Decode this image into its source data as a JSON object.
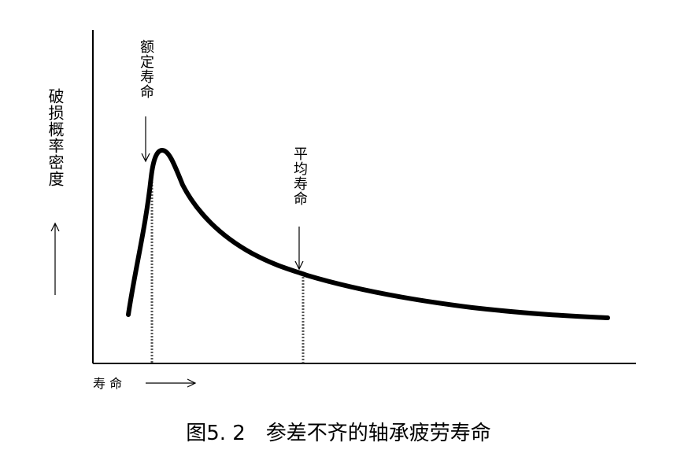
{
  "diagram": {
    "y_axis_label": "破损概率密度",
    "x_axis_label": "寿 命",
    "annotations": [
      "额定寿命",
      "平均寿命"
    ],
    "caption": "图5. 2　参差不齐的轴承疲劳寿命"
  }
}
